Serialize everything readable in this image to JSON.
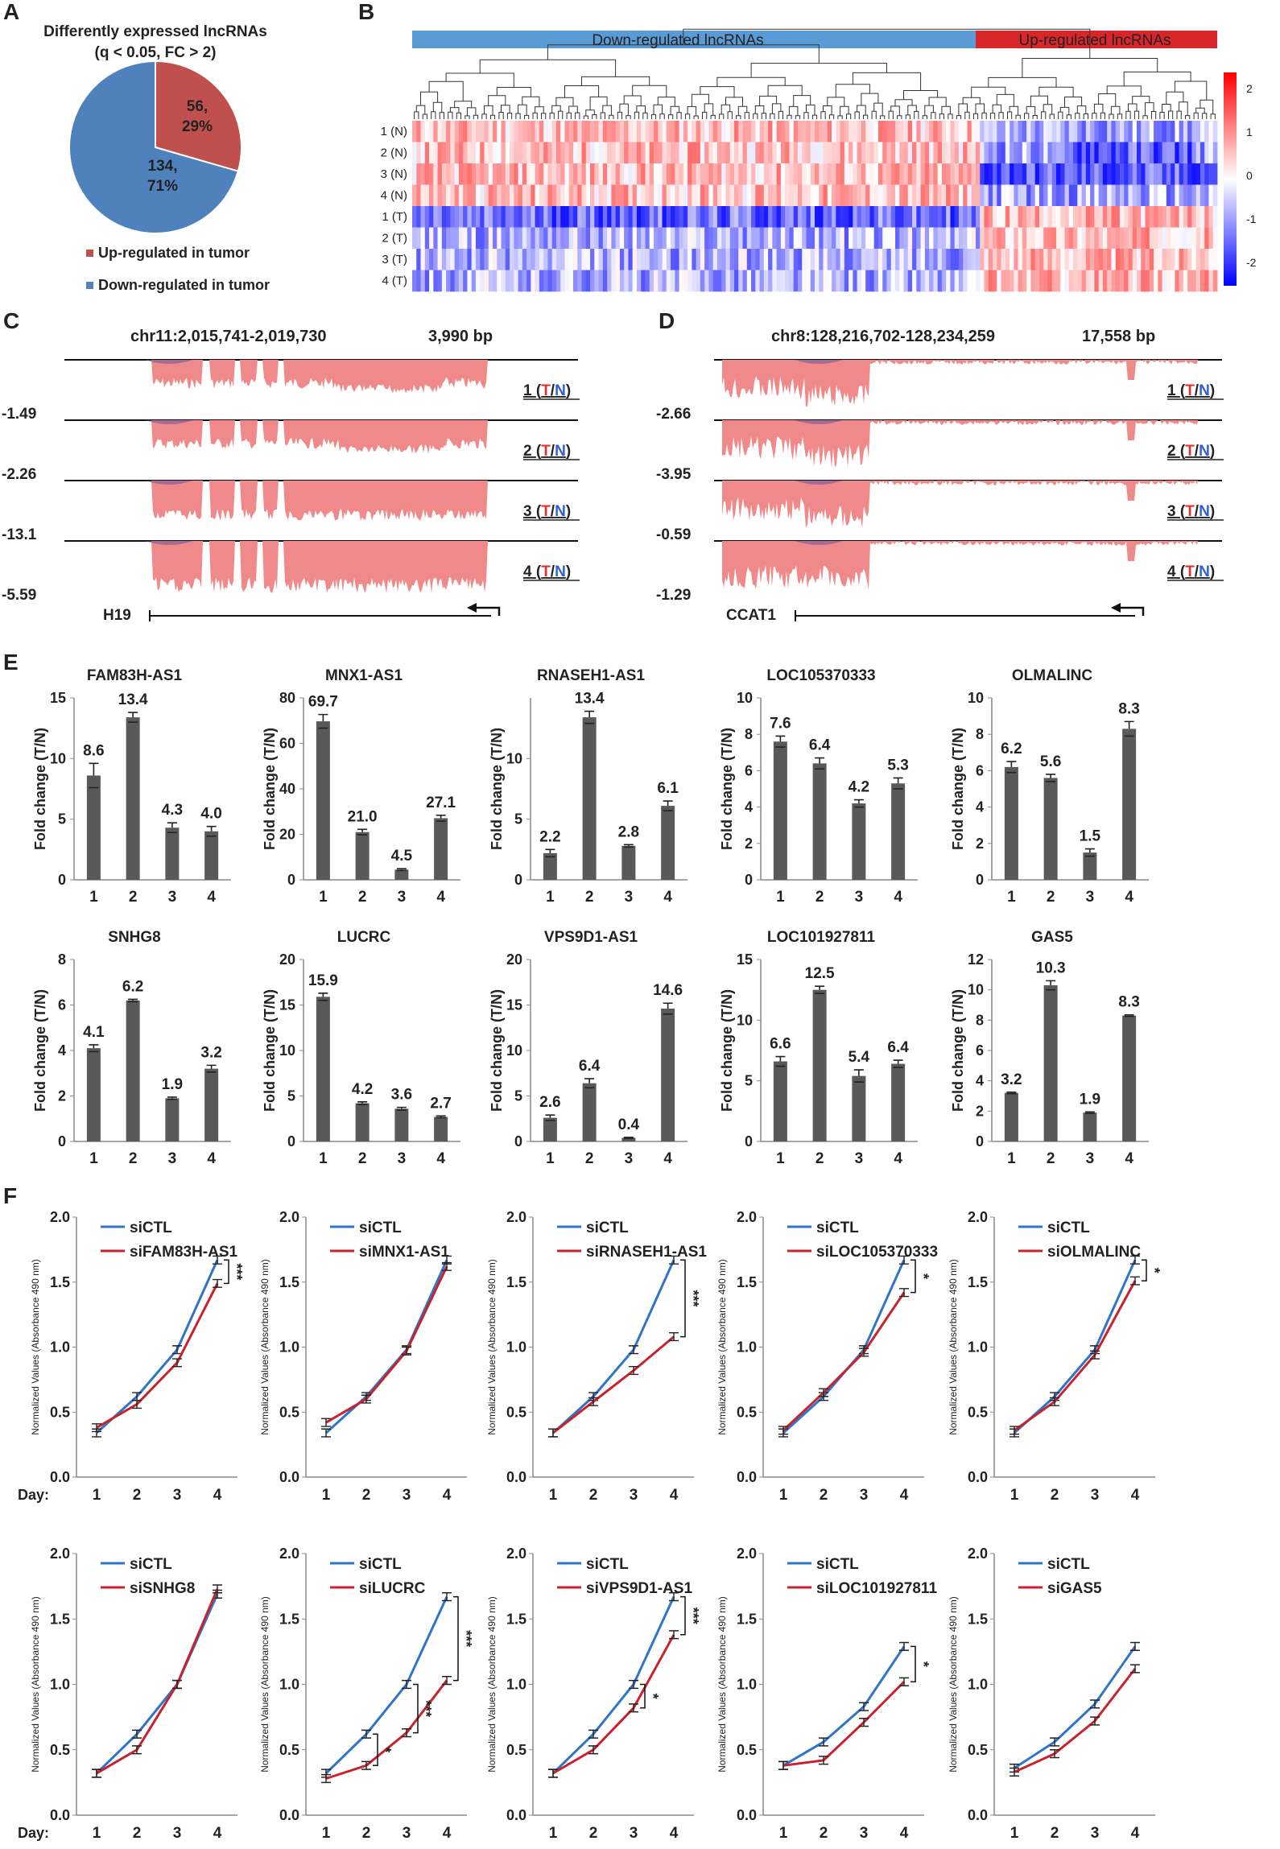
{
  "panel_letters": [
    "A",
    "B",
    "C",
    "D",
    "E",
    "F"
  ],
  "colors": {
    "up": "#c0504d",
    "down": "#4f81bd",
    "bar": "#595959",
    "siCTL": "#2e75c8",
    "siKD": "#c8232c",
    "track": "#f08a8a",
    "track_dark": "#5b4b9c",
    "tumor_text": "#d33",
    "normal_text": "#2f5fd0"
  },
  "pie": {
    "title_line1": "Differently expressed lncRNAs",
    "title_line2": "(q < 0.05, FC > 2)",
    "up_label": "56,",
    "up_pct": "29%",
    "down_label": "134,",
    "down_pct": "71%",
    "legend_up": "Up-regulated in tumor",
    "legend_down": "Down-regulated in tumor"
  },
  "heatmap": {
    "down_label": "Down-regulated lncRNAs",
    "up_label": "Up-regulated lncRNAs",
    "rows": [
      "1 (N)",
      "2 (N)",
      "3 (N)",
      "4 (N)",
      "1 (T)",
      "2 (T)",
      "3 (T)",
      "4 (T)"
    ],
    "scale_ticks": [
      "2",
      "1",
      "0",
      "-1",
      "-2"
    ]
  },
  "tracks": [
    {
      "region": "chr11:2,015,741-2,019,730",
      "length": "3,990 bp",
      "gene": "H19",
      "side_values": [
        "-1.49",
        "-2.26",
        "-13.1",
        "-5.59"
      ],
      "samples": [
        "1",
        "2",
        "3",
        "4"
      ]
    },
    {
      "region": "chr8:128,216,702-128,234,259",
      "length": "17,558 bp",
      "gene": "CCAT1",
      "side_values": [
        "-2.66",
        "-3.95",
        "-0.59",
        "-1.29"
      ],
      "samples": [
        "1",
        "2",
        "3",
        "4"
      ]
    }
  ],
  "track_tn": {
    "t": "T",
    "slash": "/",
    "n": "N",
    "open": "(",
    "close": ")"
  },
  "chart_data": [
    {
      "type": "bar",
      "title": "FAM83H-AS1",
      "categories": [
        "1",
        "2",
        "3",
        "4"
      ],
      "values": [
        8.6,
        13.4,
        4.3,
        4.0
      ],
      "errors": [
        1.0,
        0.4,
        0.4,
        0.4
      ],
      "ylim": [
        0,
        15
      ],
      "yticks": [
        "0",
        "5",
        "10",
        "15"
      ],
      "ylabel": "Fold change (T/N)",
      "labels": [
        "8.6",
        "13.4",
        "4.3",
        "4.0"
      ]
    },
    {
      "type": "bar",
      "title": "MNX1-AS1",
      "categories": [
        "1",
        "2",
        "3",
        "4"
      ],
      "values": [
        69.7,
        21.0,
        4.5,
        27.1
      ],
      "errors": [
        3.0,
        1.2,
        0.4,
        1.3
      ],
      "ylim": [
        0,
        80
      ],
      "yticks": [
        "0",
        "20",
        "40",
        "60",
        "80"
      ],
      "ylabel": "Fold change (T/N)",
      "labels": [
        "69.7",
        "21.0",
        "4.5",
        "27.1"
      ]
    },
    {
      "type": "bar",
      "title": "RNASEH1-AS1",
      "categories": [
        "1",
        "2",
        "3",
        "4"
      ],
      "values": [
        2.2,
        13.4,
        2.8,
        6.1
      ],
      "errors": [
        0.3,
        0.5,
        0.1,
        0.4
      ],
      "ylim": [
        0,
        15
      ],
      "yticks": [
        "0",
        "5",
        "10"
      ],
      "ylabel": "Fold change (T/N)",
      "labels": [
        "2.2",
        "13.4",
        "2.8",
        "6.1"
      ]
    },
    {
      "type": "bar",
      "title": "LOC105370333",
      "categories": [
        "1",
        "2",
        "3",
        "4"
      ],
      "values": [
        7.6,
        6.4,
        4.2,
        5.3
      ],
      "errors": [
        0.3,
        0.3,
        0.2,
        0.3
      ],
      "ylim": [
        0,
        10
      ],
      "yticks": [
        "0",
        "2",
        "4",
        "6",
        "8",
        "10"
      ],
      "ylabel": "Fold change (T/N)",
      "labels": [
        "7.6",
        "6.4",
        "4.2",
        "5.3"
      ]
    },
    {
      "type": "bar",
      "title": "OLMALINC",
      "categories": [
        "1",
        "2",
        "3",
        "4"
      ],
      "values": [
        6.2,
        5.6,
        1.5,
        8.3
      ],
      "errors": [
        0.3,
        0.2,
        0.2,
        0.4
      ],
      "ylim": [
        0,
        10
      ],
      "yticks": [
        "0",
        "2",
        "4",
        "6",
        "8",
        "10"
      ],
      "ylabel": "Fold change (T/N)",
      "labels": [
        "6.2",
        "5.6",
        "1.5",
        "8.3"
      ]
    },
    {
      "type": "bar",
      "title": "SNHG8",
      "categories": [
        "1",
        "2",
        "3",
        "4"
      ],
      "values": [
        4.1,
        6.2,
        1.9,
        3.2
      ],
      "errors": [
        0.15,
        0.05,
        0.05,
        0.15
      ],
      "ylim": [
        0,
        8
      ],
      "yticks": [
        "0",
        "2",
        "4",
        "6",
        "8"
      ],
      "ylabel": "Fold change (T/N)",
      "labels": [
        "4.1",
        "6.2",
        "1.9",
        "3.2"
      ]
    },
    {
      "type": "bar",
      "title": "LUCRC",
      "categories": [
        "1",
        "2",
        "3",
        "4"
      ],
      "values": [
        15.9,
        4.2,
        3.6,
        2.7
      ],
      "errors": [
        0.4,
        0.15,
        0.15,
        0.1
      ],
      "ylim": [
        0,
        20
      ],
      "yticks": [
        "0",
        "5",
        "10",
        "15",
        "20"
      ],
      "ylabel": "Fold change (T/N)",
      "labels": [
        "15.9",
        "4.2",
        "3.6",
        "2.7"
      ]
    },
    {
      "type": "bar",
      "title": "VPS9D1-AS1",
      "categories": [
        "1",
        "2",
        "3",
        "4"
      ],
      "values": [
        2.6,
        6.4,
        0.4,
        14.6
      ],
      "errors": [
        0.3,
        0.5,
        0.05,
        0.6
      ],
      "ylim": [
        0,
        20
      ],
      "yticks": [
        "0",
        "5",
        "10",
        "15",
        "20"
      ],
      "ylabel": "Fold change (T/N)",
      "labels": [
        "2.6",
        "6.4",
        "0.4",
        "14.6"
      ]
    },
    {
      "type": "bar",
      "title": "LOC101927811",
      "categories": [
        "1",
        "2",
        "3",
        "4"
      ],
      "values": [
        6.6,
        12.5,
        5.4,
        6.4
      ],
      "errors": [
        0.4,
        0.3,
        0.5,
        0.3
      ],
      "ylim": [
        0,
        15
      ],
      "yticks": [
        "0",
        "5",
        "10",
        "15"
      ],
      "ylabel": "Fold change (T/N)",
      "labels": [
        "6.6",
        "12.5",
        "5.4",
        "6.4"
      ]
    },
    {
      "type": "bar",
      "title": "GAS5",
      "categories": [
        "1",
        "2",
        "3",
        "4"
      ],
      "values": [
        3.2,
        10.3,
        1.9,
        8.3
      ],
      "errors": [
        0.05,
        0.3,
        0.05,
        0.05
      ],
      "ylim": [
        0,
        12
      ],
      "yticks": [
        "0",
        "2",
        "4",
        "6",
        "8",
        "10",
        "12"
      ],
      "ylabel": "Fold change (T/N)",
      "labels": [
        "3.2",
        "10.3",
        "1.9",
        "8.3"
      ]
    },
    {
      "type": "line",
      "legend": [
        "siCTL",
        "siFAM83H-AS1"
      ],
      "x": [
        1,
        2,
        3,
        4
      ],
      "series": [
        {
          "name": "siCTL",
          "values": [
            0.34,
            0.62,
            0.98,
            1.67
          ]
        },
        {
          "name": "siFAM83H-AS1",
          "values": [
            0.38,
            0.56,
            0.88,
            1.49
          ]
        }
      ],
      "ylim": [
        0,
        2
      ],
      "yticks": [
        "0.0",
        "0.5",
        "1.0",
        "1.5",
        "2.0"
      ],
      "ylabel": "Normalized Values (Absorbance 490 nm)",
      "sig": [
        {
          "stars": "***",
          "from": 1.67,
          "to": 1.49
        }
      ],
      "daylabel": "Day:"
    },
    {
      "type": "line",
      "legend": [
        "siCTL",
        "siMNX1-AS1"
      ],
      "x": [
        1,
        2,
        3,
        4
      ],
      "series": [
        {
          "name": "siCTL",
          "values": [
            0.34,
            0.62,
            0.98,
            1.67
          ]
        },
        {
          "name": "siMNX1-AS1",
          "values": [
            0.42,
            0.6,
            0.97,
            1.62
          ]
        }
      ],
      "ylim": [
        0,
        2
      ],
      "yticks": [
        "0.0",
        "0.5",
        "1.0",
        "1.5",
        "2.0"
      ],
      "ylabel": "Normalized Values (Absorbance 490 nm)",
      "sig": []
    },
    {
      "type": "line",
      "legend": [
        "siCTL",
        "siRNASEH1-AS1"
      ],
      "x": [
        1,
        2,
        3,
        4
      ],
      "series": [
        {
          "name": "siCTL",
          "values": [
            0.34,
            0.62,
            0.98,
            1.67
          ]
        },
        {
          "name": "siRNASEH1-AS1",
          "values": [
            0.34,
            0.58,
            0.82,
            1.08
          ]
        }
      ],
      "ylim": [
        0,
        2
      ],
      "yticks": [
        "0.0",
        "0.5",
        "1.0",
        "1.5",
        "2.0"
      ],
      "ylabel": "Normalized Values (Absorbance 490 nm)",
      "sig": [
        {
          "stars": "***",
          "from": 1.67,
          "to": 1.08
        }
      ]
    },
    {
      "type": "line",
      "legend": [
        "siCTL",
        "siLOC105370333"
      ],
      "x": [
        1,
        2,
        3,
        4
      ],
      "series": [
        {
          "name": "siCTL",
          "values": [
            0.34,
            0.62,
            0.98,
            1.67
          ]
        },
        {
          "name": "siLOC105370333",
          "values": [
            0.36,
            0.65,
            0.96,
            1.42
          ]
        }
      ],
      "ylim": [
        0,
        2
      ],
      "yticks": [
        "0.0",
        "0.5",
        "1.0",
        "1.5",
        "2.0"
      ],
      "ylabel": "Normalized Values (Absorbance 490 nm)",
      "sig": [
        {
          "stars": "*",
          "from": 1.67,
          "to": 1.42
        }
      ]
    },
    {
      "type": "line",
      "legend": [
        "siCTL",
        "siOLMALINC"
      ],
      "x": [
        1,
        2,
        3,
        4
      ],
      "series": [
        {
          "name": "siCTL",
          "values": [
            0.34,
            0.62,
            0.98,
            1.67
          ]
        },
        {
          "name": "siOLMALINC",
          "values": [
            0.36,
            0.58,
            0.94,
            1.51
          ]
        }
      ],
      "ylim": [
        0,
        2
      ],
      "yticks": [
        "0.0",
        "0.5",
        "1.0",
        "1.5",
        "2.0"
      ],
      "ylabel": "Normalized Values (Absorbance 490 nm)",
      "sig": [
        {
          "stars": "*",
          "from": 1.67,
          "to": 1.51
        }
      ]
    },
    {
      "type": "line",
      "legend": [
        "siCTL",
        "siSNHG8"
      ],
      "x": [
        1,
        2,
        3,
        4
      ],
      "series": [
        {
          "name": "siCTL",
          "values": [
            0.32,
            0.62,
            1.0,
            1.69
          ]
        },
        {
          "name": "siSNHG8",
          "values": [
            0.32,
            0.5,
            1.0,
            1.73
          ]
        }
      ],
      "ylim": [
        0,
        2
      ],
      "yticks": [
        "0.0",
        "0.5",
        "1.0",
        "1.5",
        "2.0"
      ],
      "ylabel": "Normalized Values (Absorbance 490 nm)",
      "sig": [],
      "daylabel": "Day:"
    },
    {
      "type": "line",
      "legend": [
        "siCTL",
        "siLUCRC"
      ],
      "x": [
        1,
        2,
        3,
        4
      ],
      "series": [
        {
          "name": "siCTL",
          "values": [
            0.32,
            0.62,
            1.0,
            1.67
          ]
        },
        {
          "name": "siLUCRC",
          "values": [
            0.28,
            0.38,
            0.63,
            1.03
          ]
        }
      ],
      "ylim": [
        0,
        2
      ],
      "yticks": [
        "0.0",
        "0.5",
        "1.0",
        "1.5",
        "2.0"
      ],
      "ylabel": "Normalized Values (Absorbance 490 nm)",
      "sig": [
        {
          "stars": "*",
          "from": 0.62,
          "to": 0.38,
          "at": 2
        },
        {
          "stars": "***",
          "from": 1.0,
          "to": 0.63,
          "at": 3
        },
        {
          "stars": "***",
          "from": 1.67,
          "to": 1.03,
          "at": 4
        }
      ]
    },
    {
      "type": "line",
      "legend": [
        "siCTL",
        "siVPS9D1-AS1"
      ],
      "x": [
        1,
        2,
        3,
        4
      ],
      "series": [
        {
          "name": "siCTL",
          "values": [
            0.32,
            0.62,
            1.0,
            1.67
          ]
        },
        {
          "name": "siVPS9D1-AS1",
          "values": [
            0.32,
            0.5,
            0.82,
            1.38
          ]
        }
      ],
      "ylim": [
        0,
        2
      ],
      "yticks": [
        "0.0",
        "0.5",
        "1.0",
        "1.5",
        "2.0"
      ],
      "ylabel": "Normalized Values (Absorbance 490 nm)",
      "sig": [
        {
          "stars": "*",
          "from": 1.0,
          "to": 0.82,
          "at": 3
        },
        {
          "stars": "***",
          "from": 1.67,
          "to": 1.38,
          "at": 4
        }
      ]
    },
    {
      "type": "line",
      "legend": [
        "siCTL",
        "siLOC101927811"
      ],
      "x": [
        1,
        2,
        3,
        4
      ],
      "series": [
        {
          "name": "siCTL",
          "values": [
            0.38,
            0.56,
            0.83,
            1.29
          ]
        },
        {
          "name": "siLOC101927811",
          "values": [
            0.38,
            0.42,
            0.71,
            1.02
          ]
        }
      ],
      "ylim": [
        0,
        2
      ],
      "yticks": [
        "0.0",
        "0.5",
        "1.0",
        "1.5",
        "2.0"
      ],
      "ylabel": "Normalized Values (Absorbance 490 nm)",
      "sig": [
        {
          "stars": "*",
          "from": 1.29,
          "to": 1.02,
          "at": 4
        }
      ]
    },
    {
      "type": "line",
      "legend": [
        "siCTL",
        "siGAS5"
      ],
      "x": [
        1,
        2,
        3,
        4
      ],
      "series": [
        {
          "name": "siCTL",
          "values": [
            0.36,
            0.56,
            0.85,
            1.29
          ]
        },
        {
          "name": "siGAS5",
          "values": [
            0.33,
            0.47,
            0.72,
            1.12
          ]
        }
      ],
      "ylim": [
        0,
        2
      ],
      "yticks": [
        "0.0",
        "0.5",
        "1.0",
        "1.5",
        "2.0"
      ],
      "ylabel": "Normalized Values (Absorbance 490 nm)",
      "sig": []
    }
  ]
}
